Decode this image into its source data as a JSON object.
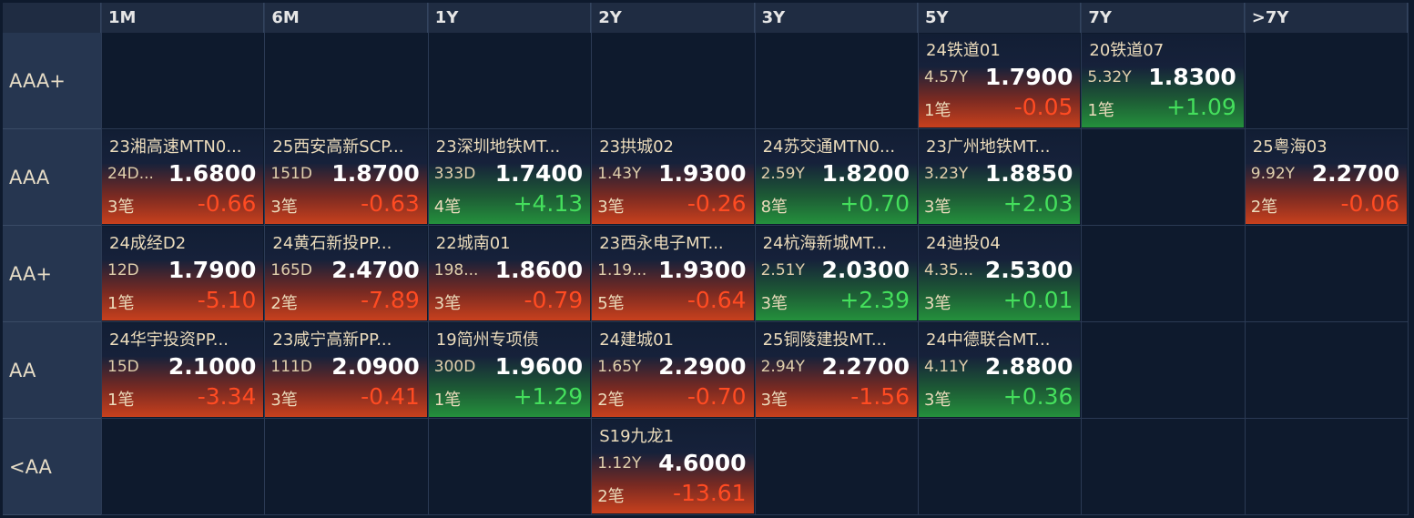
{
  "columns": [
    "1M",
    "6M",
    "1Y",
    "2Y",
    "3Y",
    "5Y",
    "7Y",
    ">7Y"
  ],
  "rows": [
    {
      "label": "AAA+",
      "cells": [
        null,
        null,
        null,
        null,
        null,
        {
          "name": "24铁道01",
          "term": "4.57Y",
          "price": "1.7900",
          "count": "1笔",
          "change": "-0.05"
        },
        {
          "name": "20铁道07",
          "term": "5.32Y",
          "price": "1.8300",
          "count": "1笔",
          "change": "+1.09"
        },
        null
      ]
    },
    {
      "label": "AAA",
      "cells": [
        {
          "name": "23湘高速MTN0...",
          "term": "24D...",
          "price": "1.6800",
          "count": "3笔",
          "change": "-0.66"
        },
        {
          "name": "25西安高新SCP...",
          "term": "151D",
          "price": "1.8700",
          "count": "3笔",
          "change": "-0.63"
        },
        {
          "name": "23深圳地铁MT...",
          "term": "333D",
          "price": "1.7400",
          "count": "4笔",
          "change": "+4.13"
        },
        {
          "name": "23拱城02",
          "term": "1.43Y",
          "price": "1.9300",
          "count": "3笔",
          "change": "-0.26"
        },
        {
          "name": "24苏交通MTN0...",
          "term": "2.59Y",
          "price": "1.8200",
          "count": "8笔",
          "change": "+0.70"
        },
        {
          "name": "23广州地铁MT...",
          "term": "3.23Y",
          "price": "1.8850",
          "count": "3笔",
          "change": "+2.03"
        },
        null,
        {
          "name": "25粤海03",
          "term": "9.92Y",
          "price": "2.2700",
          "count": "2笔",
          "change": "-0.06"
        }
      ]
    },
    {
      "label": "AA+",
      "cells": [
        {
          "name": "24成经D2",
          "term": "12D",
          "price": "1.7900",
          "count": "1笔",
          "change": "-5.10"
        },
        {
          "name": "24黄石新投PP...",
          "term": "165D",
          "price": "2.4700",
          "count": "2笔",
          "change": "-7.89"
        },
        {
          "name": "22城南01",
          "term": "198...",
          "price": "1.8600",
          "count": "3笔",
          "change": "-0.79"
        },
        {
          "name": "23西永电子MT...",
          "term": "1.19...",
          "price": "1.9300",
          "count": "5笔",
          "change": "-0.64"
        },
        {
          "name": "24杭海新城MT...",
          "term": "2.51Y",
          "price": "2.0300",
          "count": "3笔",
          "change": "+2.39"
        },
        {
          "name": "24迪投04",
          "term": "4.35...",
          "price": "2.5300",
          "count": "3笔",
          "change": "+0.01"
        },
        null,
        null
      ]
    },
    {
      "label": "AA",
      "cells": [
        {
          "name": "24华宇投资PP...",
          "term": "15D",
          "price": "2.1000",
          "count": "1笔",
          "change": "-3.34"
        },
        {
          "name": "23咸宁高新PP...",
          "term": "111D",
          "price": "2.0900",
          "count": "3笔",
          "change": "-0.41"
        },
        {
          "name": "19简州专项债",
          "term": "300D",
          "price": "1.9600",
          "count": "1笔",
          "change": "+1.29"
        },
        {
          "name": "24建城01",
          "term": "1.65Y",
          "price": "2.2900",
          "count": "2笔",
          "change": "-0.70"
        },
        {
          "name": "25铜陵建投MT...",
          "term": "2.94Y",
          "price": "2.2700",
          "count": "3笔",
          "change": "-1.56"
        },
        {
          "name": "24中德联合MT...",
          "term": "4.11Y",
          "price": "2.8800",
          "count": "3笔",
          "change": "+0.36"
        },
        null,
        null
      ]
    },
    {
      "label": "<AA",
      "cells": [
        null,
        null,
        null,
        {
          "name": "S19九龙1",
          "term": "1.12Y",
          "price": "4.6000",
          "count": "2笔",
          "change": "-13.61"
        },
        null,
        null,
        null,
        null
      ]
    }
  ]
}
